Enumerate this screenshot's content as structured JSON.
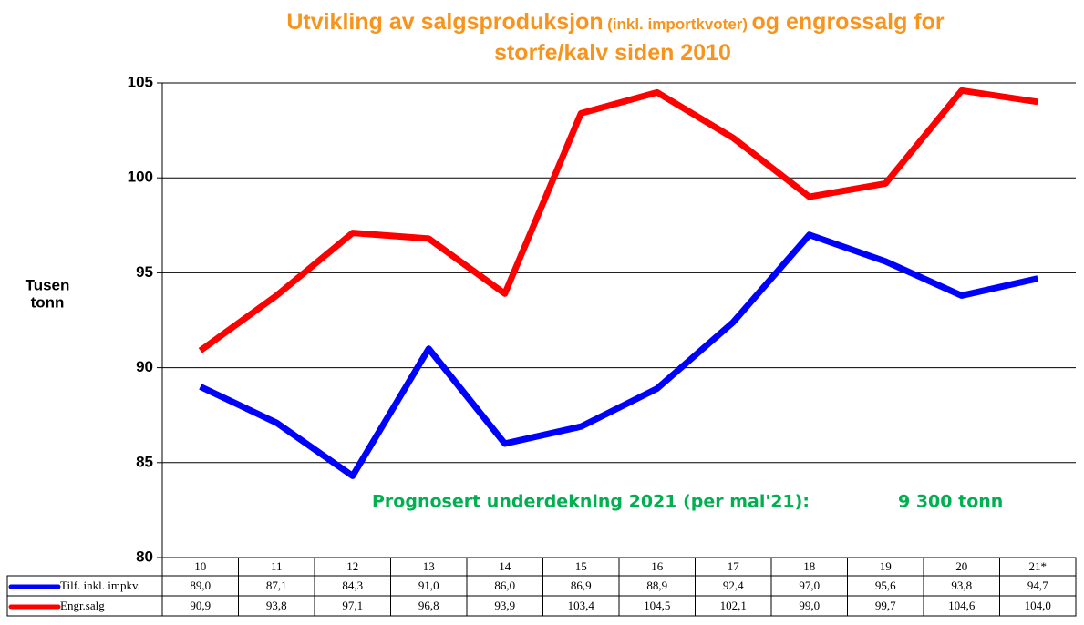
{
  "chart_data": {
    "type": "line",
    "title": "Utvikling av salgsproduksjon",
    "title_note": "(inkl. importkvoter)",
    "title_end": "og engrossalg for",
    "title_line2": "storfe/kalv siden 2010",
    "ylabel": [
      "Tusen",
      "tonn"
    ],
    "annotation": "Prognosert underdekning 2021 (per mai'21):",
    "annotation_value": "9 300 tonn",
    "categories": [
      "10",
      "11",
      "12",
      "13",
      "14",
      "15",
      "16",
      "17",
      "18",
      "19",
      "20",
      "21*"
    ],
    "series": [
      {
        "name": "Tilf. inkl. impkv.",
        "color": "#0000ff",
        "values": [
          89.0,
          87.1,
          84.3,
          91.0,
          86.0,
          86.9,
          88.9,
          92.4,
          97.0,
          95.6,
          93.8,
          94.7
        ],
        "value_labels": [
          "89,0",
          "87,1",
          "84,3",
          "91,0",
          "86,0",
          "86,9",
          "88,9",
          "92,4",
          "97,0",
          "95,6",
          "93,8",
          "94,7"
        ]
      },
      {
        "name": "Engr.salg",
        "color": "#ff0000",
        "values": [
          90.9,
          93.8,
          97.1,
          96.8,
          93.9,
          103.4,
          104.5,
          102.1,
          99.0,
          99.7,
          104.6,
          104.0
        ],
        "value_labels": [
          "90,9",
          "93,8",
          "97,1",
          "96,8",
          "93,9",
          "103,4",
          "104,5",
          "102,1",
          "99,0",
          "99,7",
          "104,6",
          "104,0"
        ]
      }
    ],
    "ylim": [
      80,
      105
    ],
    "yticks": [
      80,
      85,
      90,
      95,
      100,
      105
    ],
    "grid": true
  }
}
